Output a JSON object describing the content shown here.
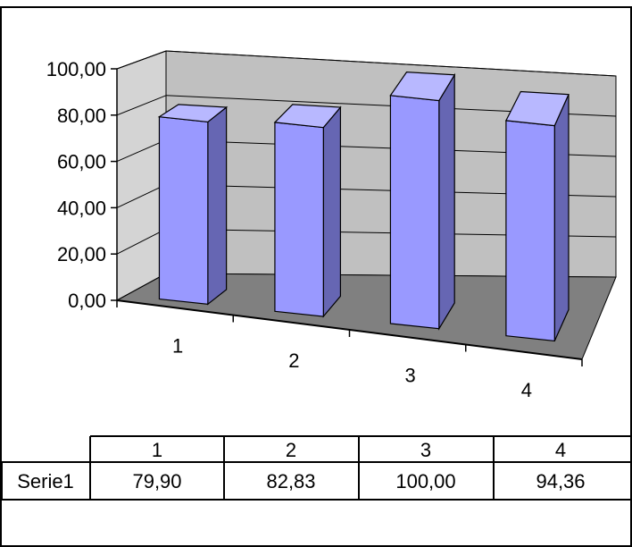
{
  "chart_data": {
    "type": "bar",
    "three_d": true,
    "categories": [
      "1",
      "2",
      "3",
      "4"
    ],
    "series": [
      {
        "name": "Serie1",
        "values": [
          79.9,
          82.83,
          100.0,
          94.36
        ]
      }
    ],
    "ylim": [
      0,
      100
    ],
    "y_ticks": [
      "0,00",
      "20,00",
      "40,00",
      "60,00",
      "80,00",
      "100,00"
    ],
    "y_tick_values": [
      0,
      20,
      40,
      60,
      80,
      100
    ],
    "data_table": {
      "header": [
        "1",
        "2",
        "3",
        "4"
      ],
      "row_label": "Serie1",
      "cells": [
        "79,90",
        "82,83",
        "100,00",
        "94,36"
      ]
    },
    "grid": true,
    "colors": {
      "bar_front": "#9999ff",
      "bar_side": "#6666b3",
      "bar_top": "#b8b8ff",
      "wall": "#c0c0c0",
      "floor": "#808080"
    }
  }
}
